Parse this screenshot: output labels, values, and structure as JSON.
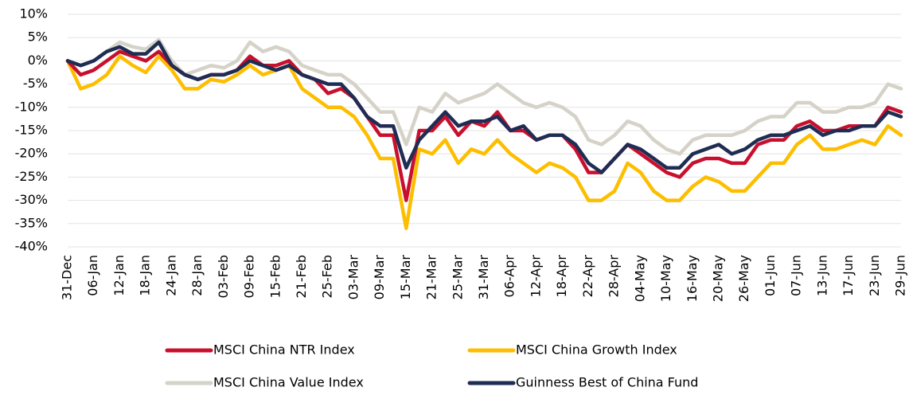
{
  "chart_data": {
    "type": "line",
    "categories": [
      "31-Dec",
      null,
      "06-Jan",
      null,
      "12-Jan",
      null,
      "18-Jan",
      null,
      "24-Jan",
      null,
      "28-Jan",
      null,
      "03-Feb",
      null,
      "09-Feb",
      null,
      "15-Feb",
      null,
      "21-Feb",
      null,
      "25-Feb",
      null,
      "03-Mar",
      null,
      "09-Mar",
      null,
      "15-Mar",
      null,
      "21-Mar",
      null,
      "25-Mar",
      null,
      "31-Mar",
      null,
      "06-Apr",
      null,
      "12-Apr",
      null,
      "18-Apr",
      null,
      "22-Apr",
      null,
      "28-Apr",
      null,
      "04-May",
      null,
      "10-May",
      null,
      "16-May",
      null,
      "20-May",
      null,
      "26-May",
      null,
      "01-Jun",
      null,
      "07-Jun",
      null,
      "13-Jun",
      null,
      "17-Jun",
      null,
      "23-Jun",
      null,
      "29-Jun"
    ],
    "series": [
      {
        "name": "MSCI China NTR Index",
        "color": "#c8102e",
        "values": [
          0,
          -3,
          -2,
          0,
          2,
          1,
          0,
          2,
          -1,
          -3,
          -4,
          -3,
          -3,
          -2,
          1,
          -1,
          -1,
          0,
          -3,
          -4,
          -7,
          -6,
          -8,
          -12,
          -16,
          -16,
          -30,
          -15,
          -15,
          -12,
          -16,
          -13,
          -14,
          -11,
          -15,
          -15,
          -17,
          -16,
          -16,
          -19,
          -24,
          -24,
          -21,
          -18,
          -20,
          -22,
          -24,
          -25,
          -22,
          -21,
          -21,
          -22,
          -22,
          -18,
          -17,
          -17,
          -14,
          -13,
          -15,
          -15,
          -14,
          -14,
          -14,
          -10,
          -11
        ]
      },
      {
        "name": "MSCI China Growth Index",
        "color": "#fdbe00",
        "values": [
          0,
          -6,
          -5,
          -3,
          1,
          -1,
          -2.5,
          1,
          -2,
          -6,
          -6,
          -4,
          -4.5,
          -3,
          -1,
          -3,
          -2,
          -1,
          -6,
          -8,
          -10,
          -10,
          -12,
          -16,
          -21,
          -21,
          -36,
          -19,
          -20,
          -17,
          -22,
          -19,
          -20,
          -17,
          -20,
          -22,
          -24,
          -22,
          -23,
          -25,
          -30,
          -30,
          -28,
          -22,
          -24,
          -28,
          -30,
          -30,
          -27,
          -25,
          -26,
          -28,
          -28,
          -25,
          -22,
          -22,
          -18,
          -16,
          -19,
          -19,
          -18,
          -17,
          -18,
          -14,
          -16
        ]
      },
      {
        "name": "MSCI China Value Index",
        "color": "#d5d2c8",
        "values": [
          0,
          -1,
          0,
          2,
          4,
          3,
          2.5,
          4.5,
          0,
          -3,
          -2,
          -1,
          -1.5,
          0,
          4,
          2,
          3,
          2,
          -1,
          -2,
          -3,
          -3,
          -5,
          -8,
          -11,
          -11,
          -18,
          -10,
          -11,
          -7,
          -9,
          -8,
          -7,
          -5,
          -7,
          -9,
          -10,
          -9,
          -10,
          -12,
          -17,
          -18,
          -16,
          -13,
          -14,
          -17,
          -19,
          -20,
          -17,
          -16,
          -16,
          -16,
          -15,
          -13,
          -12,
          -12,
          -9,
          -9,
          -11,
          -11,
          -10,
          -10,
          -9,
          -5,
          -6
        ]
      },
      {
        "name": "Guinness Best of China Fund",
        "color": "#1f2d54",
        "values": [
          0,
          -1,
          0,
          2,
          3,
          1.5,
          1.5,
          4,
          -1,
          -3,
          -4,
          -3,
          -3,
          -2,
          0,
          -1,
          -2,
          -1,
          -3,
          -4,
          -5,
          -5,
          -8,
          -12,
          -14,
          -14,
          -23,
          -17,
          -14,
          -11,
          -14,
          -13,
          -13,
          -12,
          -15,
          -14,
          -17,
          -16,
          -16,
          -18,
          -22,
          -24,
          -21,
          -18,
          -19,
          -21,
          -23,
          -23,
          -20,
          -19,
          -18,
          -20,
          -19,
          -17,
          -16,
          -16,
          -15,
          -14,
          -16,
          -15,
          -15,
          -14,
          -14,
          -11,
          -12
        ]
      }
    ],
    "draw_order": [
      2,
      1,
      0,
      3
    ],
    "ylim": [
      -40,
      10
    ],
    "yticks": [
      {
        "value": -40,
        "label": "-40%"
      },
      {
        "value": -35,
        "label": "-35%"
      },
      {
        "value": -30,
        "label": "-30%"
      },
      {
        "value": -25,
        "label": "-25%"
      },
      {
        "value": -20,
        "label": "-20%"
      },
      {
        "value": -15,
        "label": "-15%"
      },
      {
        "value": -10,
        "label": "-10%"
      },
      {
        "value": -5,
        "label": "-5%"
      },
      {
        "value": 0,
        "label": "0%"
      },
      {
        "value": 5,
        "label": "5%"
      },
      {
        "value": 10,
        "label": "10%"
      }
    ],
    "grid": true
  }
}
